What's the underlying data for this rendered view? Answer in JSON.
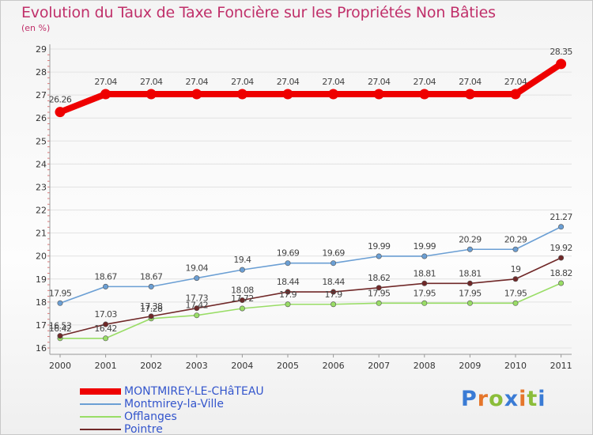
{
  "chart_data": {
    "type": "line",
    "title": "Evolution du Taux de Taxe Foncière sur les Propriétés Non Bâties",
    "subtitle": "(en %)",
    "x": [
      "2000",
      "2001",
      "2002",
      "2003",
      "2004",
      "2005",
      "2006",
      "2007",
      "2008",
      "2009",
      "2010",
      "2011"
    ],
    "ylim": [
      16,
      29
    ],
    "yticks": [
      "16",
      "17",
      "18",
      "19",
      "20",
      "21",
      "22",
      "23",
      "24",
      "25",
      "26",
      "27",
      "28",
      "29"
    ],
    "series": [
      {
        "name": "MONTMIREY-LE-CHâTEAU",
        "color": "#ee0000",
        "emphasis": true,
        "values": [
          26.26,
          27.04,
          27.04,
          27.04,
          27.04,
          27.04,
          27.04,
          27.04,
          27.04,
          27.04,
          27.04,
          28.35
        ],
        "labels": [
          "26.26",
          "27.04",
          "27.04",
          "27.04",
          "27.04",
          "27.04",
          "27.04",
          "27.04",
          "27.04",
          "27.04",
          "27.04",
          "28.35"
        ]
      },
      {
        "name": "Montmirey-la-Ville",
        "color": "#6b9fd4",
        "values": [
          17.95,
          18.67,
          18.67,
          19.04,
          19.4,
          19.69,
          19.69,
          19.99,
          19.99,
          20.29,
          20.29,
          21.27
        ],
        "labels": [
          "17.95",
          "18.67",
          "18.67",
          "19.04",
          "19.4",
          "19.69",
          "19.69",
          "19.99",
          "19.99",
          "20.29",
          "20.29",
          "21.27"
        ]
      },
      {
        "name": "Offlanges",
        "color": "#99dd66",
        "values": [
          16.42,
          16.42,
          17.28,
          17.42,
          17.72,
          17.9,
          17.9,
          17.95,
          17.95,
          17.95,
          17.95,
          18.82
        ],
        "labels": [
          "16.42",
          "16.42",
          "17.28",
          "17.42",
          "17.72",
          "17.9",
          "17.9",
          "17.95",
          "17.95",
          "17.95",
          "17.95",
          "18.82"
        ]
      },
      {
        "name": "Pointre",
        "color": "#702828",
        "values": [
          16.53,
          17.03,
          17.38,
          17.73,
          18.08,
          18.44,
          18.44,
          18.62,
          18.81,
          18.81,
          19.0,
          19.92
        ],
        "labels": [
          "16.53",
          "17.03",
          "17.38",
          "17.73",
          "18.08",
          "18.44",
          "18.44",
          "18.62",
          "18.81",
          "18.81",
          "19",
          "19.92"
        ]
      }
    ]
  },
  "logo": {
    "text": "Proxiti",
    "letters": [
      "P",
      "r",
      "o",
      "x",
      "i",
      "t",
      "i"
    ]
  }
}
